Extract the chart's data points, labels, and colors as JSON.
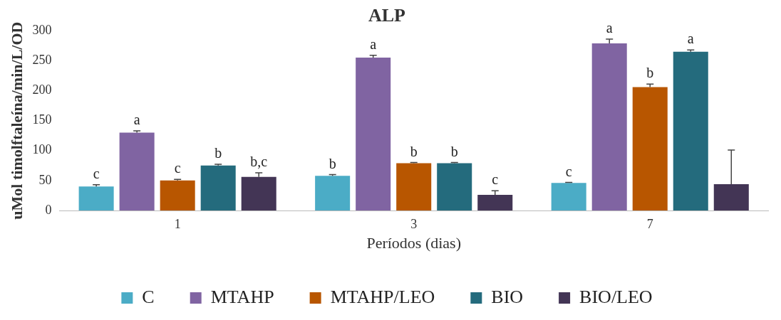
{
  "chart_data": {
    "type": "bar",
    "title": "ALP",
    "xlabel": "Períodos (dias)",
    "ylabel": "uMol timolftaleína/min/L/OD",
    "categories": [
      "1",
      "3",
      "7"
    ],
    "ylim": [
      0,
      300
    ],
    "yticks": [
      0,
      50,
      100,
      150,
      200,
      250,
      300
    ],
    "grid": false,
    "legend": "bottom",
    "series": [
      {
        "name": "C",
        "color": "#4bacc6",
        "values": [
          40,
          58,
          46
        ],
        "errors": [
          [
            40,
            43
          ],
          [
            58,
            60
          ],
          [
            46,
            47
          ]
        ],
        "value_labels": [
          "c",
          "b",
          "c"
        ]
      },
      {
        "name": "MTAHP",
        "color": "#8064a2",
        "values": [
          130,
          255,
          279
        ],
        "errors": [
          [
            130,
            133
          ],
          [
            255,
            259
          ],
          [
            279,
            286
          ]
        ],
        "value_labels": [
          "a",
          "a",
          "a"
        ]
      },
      {
        "name": "MTAHP/LEO",
        "color": "#b85600",
        "values": [
          50,
          79,
          206
        ],
        "errors": [
          [
            50,
            52
          ],
          [
            79,
            80
          ],
          [
            206,
            211
          ]
        ],
        "value_labels": [
          "c",
          "b",
          "b"
        ]
      },
      {
        "name": "BIO",
        "color": "#246b7d",
        "values": [
          75,
          79,
          265
        ],
        "errors": [
          [
            75,
            77
          ],
          [
            79,
            80
          ],
          [
            265,
            268
          ]
        ],
        "value_labels": [
          "b",
          "b",
          "a"
        ]
      },
      {
        "name": "BIO/LEO",
        "color": "#433555",
        "values": [
          56,
          26,
          44
        ],
        "errors": [
          [
            56,
            63
          ],
          [
            26,
            33
          ],
          [
            44,
            101
          ]
        ],
        "value_labels": [
          "b,c",
          "c",
          null
        ]
      }
    ]
  }
}
